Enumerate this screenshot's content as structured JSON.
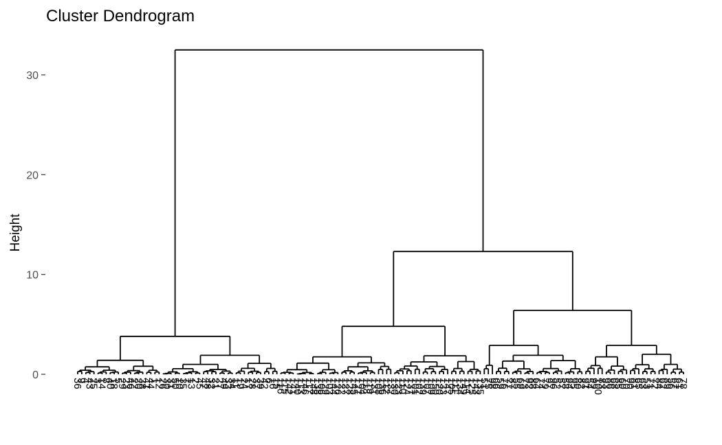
{
  "chart_data": {
    "type": "dendrogram",
    "title": "Cluster Dendrogram",
    "xlabel": "",
    "ylabel": "Height",
    "ylim": [
      0,
      32
    ],
    "y_ticks": [
      0,
      10,
      20,
      30
    ],
    "grid": false,
    "n_leaves": 150,
    "leaf_labels": [
      "36",
      "9",
      "4",
      "43",
      "25",
      "3",
      "14",
      "8",
      "40",
      "18",
      "5",
      "29",
      "23",
      "46",
      "22",
      "20",
      "38",
      "41",
      "44",
      "1",
      "12",
      "26",
      "30",
      "31",
      "50",
      "10",
      "35",
      "7",
      "13",
      "2",
      "45",
      "47",
      "48",
      "32",
      "21",
      "27",
      "49",
      "33",
      "34",
      "11",
      "19",
      "24",
      "17",
      "28",
      "37",
      "39",
      "42",
      "6",
      "16",
      "15",
      "116",
      "115",
      "142",
      "141",
      "140",
      "113",
      "146",
      "117",
      "148",
      "138",
      "106",
      "129",
      "103",
      "144",
      "126",
      "122",
      "127",
      "128",
      "145",
      "121",
      "104",
      "118",
      "119",
      "131",
      "108",
      "136",
      "112",
      "132",
      "130",
      "123",
      "110",
      "124",
      "137",
      "101",
      "102",
      "139",
      "107",
      "109",
      "150",
      "120",
      "133",
      "147",
      "105",
      "111",
      "134",
      "149",
      "114",
      "125",
      "143",
      "135",
      "51",
      "75",
      "98",
      "66",
      "59",
      "76",
      "77",
      "87",
      "55",
      "69",
      "73",
      "92",
      "88",
      "64",
      "74",
      "79",
      "97",
      "96",
      "52",
      "57",
      "58",
      "94",
      "95",
      "80",
      "82",
      "91",
      "54",
      "99",
      "100",
      "83",
      "93",
      "86",
      "68",
      "85",
      "60",
      "70",
      "90",
      "81",
      "65",
      "63",
      "53",
      "71",
      "72",
      "84",
      "62",
      "89",
      "56",
      "67",
      "61",
      "78"
    ],
    "merges": [
      {
        "id": "root",
        "height": 32.5,
        "children": [
          "setosa_group",
          "versicolor_virginica_group"
        ]
      },
      {
        "id": "setosa_group",
        "height": 3.8,
        "children": [
          "setosa_a",
          "setosa_b"
        ]
      },
      {
        "id": "setosa_a",
        "height": 1.4,
        "range": [
          1,
          21
        ]
      },
      {
        "id": "setosa_b",
        "height": 1.9,
        "range": [
          22,
          50
        ]
      },
      {
        "id": "versicolor_virginica_group",
        "height": 12.3,
        "children": [
          "virginica_group",
          "versicolor_group"
        ]
      },
      {
        "id": "virginica_group",
        "height": 4.8,
        "children": [
          "virginica_a",
          "virginica_b"
        ]
      },
      {
        "id": "virginica_a",
        "height": 1.75,
        "range": [
          51,
          78
        ]
      },
      {
        "id": "virginica_b",
        "height": 1.85,
        "range": [
          79,
          100
        ]
      },
      {
        "id": "versicolor_group",
        "height": 6.4,
        "children": [
          "versicolor_a",
          "versicolor_b"
        ]
      },
      {
        "id": "versicolor_a",
        "height": 2.9,
        "children": [
          "versicolor_a1",
          "versicolor_a2"
        ]
      },
      {
        "id": "versicolor_a1",
        "height": 0.9,
        "range": [
          101,
          103
        ]
      },
      {
        "id": "versicolor_a2",
        "height": 1.9,
        "range": [
          104,
          125
        ]
      },
      {
        "id": "versicolor_b",
        "height": 2.9,
        "children": [
          "versicolor_b1",
          "versicolor_b2"
        ]
      },
      {
        "id": "versicolor_b1",
        "height": 1.75,
        "range": [
          126,
          136
        ]
      },
      {
        "id": "versicolor_b2",
        "height": 2.0,
        "range": [
          137,
          150
        ]
      }
    ]
  }
}
